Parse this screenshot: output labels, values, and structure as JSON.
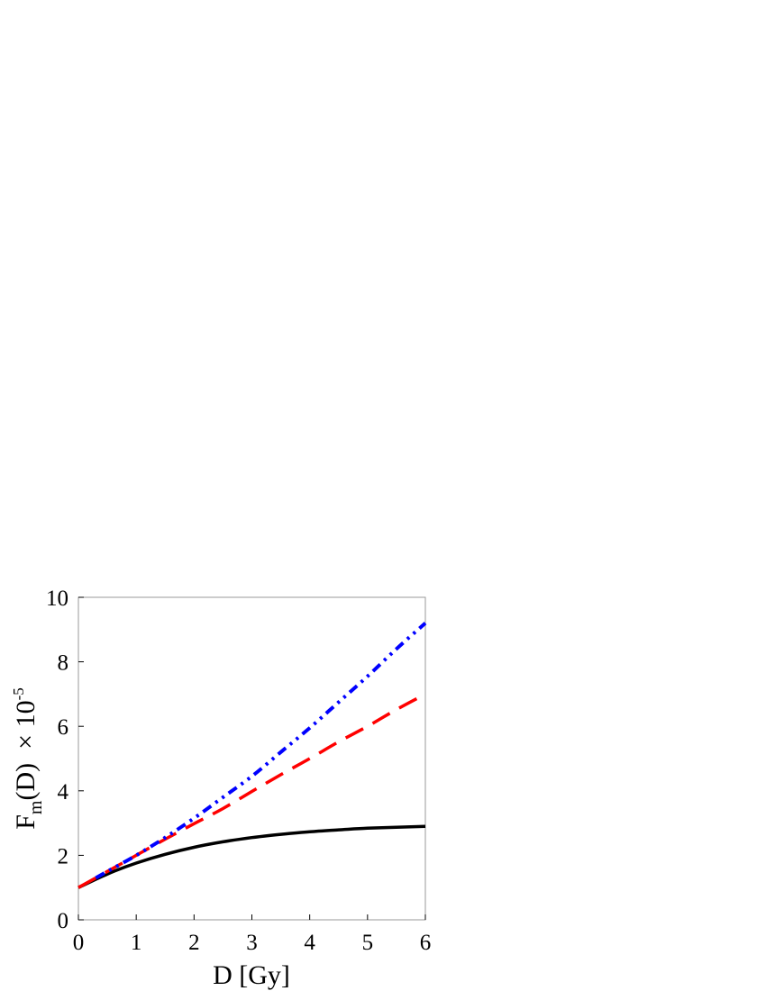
{
  "chart_data": {
    "type": "line",
    "xlabel": "D [Gy]",
    "ylabel": {
      "main": "F",
      "subscript": "m",
      "after": "(D)  × 10",
      "superscript": "-5"
    },
    "xlim": [
      0,
      6
    ],
    "ylim": [
      0,
      10
    ],
    "xticks": [
      "0",
      "1",
      "2",
      "3",
      "4",
      "5",
      "6"
    ],
    "yticks": [
      "0",
      "2",
      "4",
      "6",
      "8",
      "10"
    ],
    "grid": false,
    "legend": "none",
    "series": [
      {
        "style": "solid",
        "color": "#000000",
        "x": [
          0,
          0.5,
          1,
          1.5,
          2,
          2.5,
          3,
          3.5,
          4,
          4.5,
          5,
          5.5,
          6
        ],
        "y": [
          1.0,
          1.42,
          1.76,
          2.03,
          2.25,
          2.42,
          2.55,
          2.65,
          2.73,
          2.79,
          2.84,
          2.87,
          2.9
        ]
      },
      {
        "style": "dashed",
        "color": "#ff0000",
        "x": [
          0,
          0.5,
          1,
          1.5,
          2,
          2.5,
          3,
          3.5,
          4,
          4.5,
          5,
          5.5,
          6
        ],
        "y": [
          1.0,
          1.5,
          2.0,
          2.5,
          2.98,
          3.45,
          3.98,
          4.5,
          5.0,
          5.52,
          6.0,
          6.52,
          7.0
        ]
      },
      {
        "style": "dash-dot-dot",
        "color": "#0000ff",
        "x": [
          0.3,
          0.5,
          1,
          1.5,
          2,
          2.5,
          3,
          3.5,
          4,
          4.5,
          5,
          5.5,
          6
        ],
        "y": [
          1.3,
          1.5,
          2.0,
          2.55,
          3.15,
          3.8,
          4.45,
          5.2,
          5.95,
          6.75,
          7.55,
          8.4,
          9.2
        ]
      }
    ]
  }
}
